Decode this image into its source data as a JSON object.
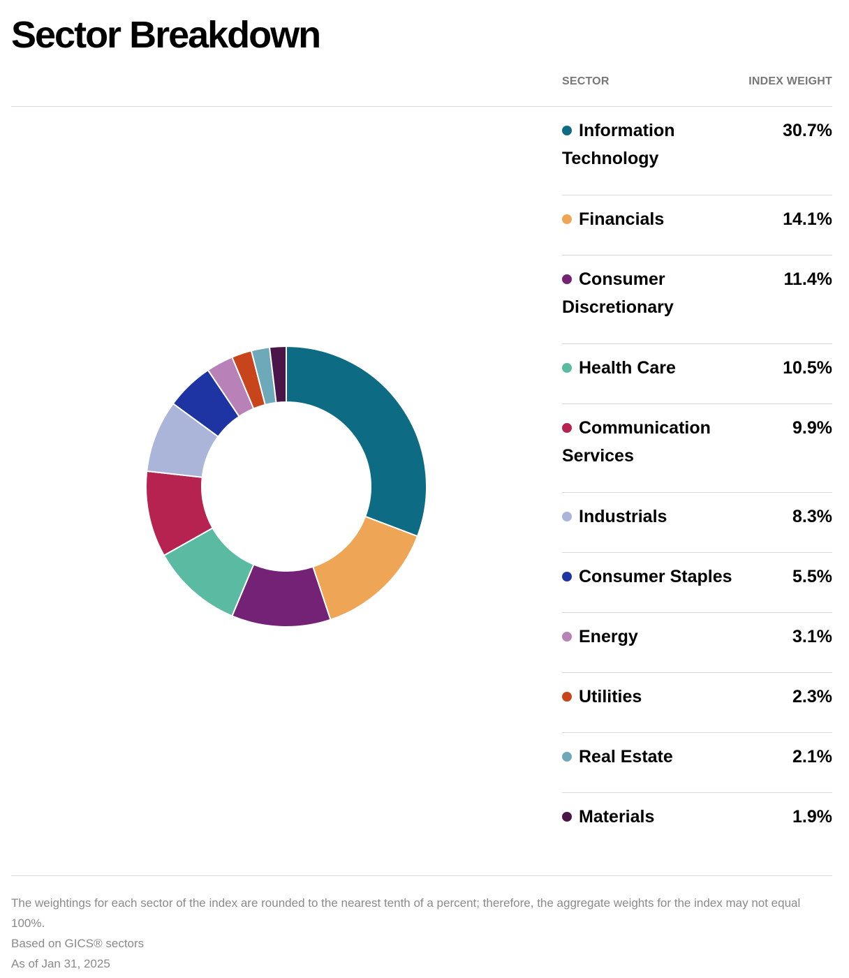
{
  "page": {
    "title": "Sector Breakdown",
    "columns": {
      "sector": "SECTOR",
      "weight": "INDEX WEIGHT"
    },
    "notes": {
      "rounding": "The weightings for each sector of the index are rounded to the nearest tenth of a percent; therefore, the aggregate weights for the index may not equal 100%.",
      "basis": "Based on GICS® sectors",
      "as_of": "As of Jan 31, 2025"
    }
  },
  "chart_data": {
    "type": "pie",
    "donut": true,
    "title": "Sector Breakdown",
    "categories": [
      "Information Technology",
      "Financials",
      "Consumer Discretionary",
      "Health Care",
      "Communication Services",
      "Industrials",
      "Consumer Staples",
      "Energy",
      "Utilities",
      "Real Estate",
      "Materials"
    ],
    "values": [
      30.7,
      14.1,
      11.4,
      10.5,
      9.9,
      8.3,
      5.5,
      3.1,
      2.3,
      2.1,
      1.9
    ],
    "labels": [
      "30.7%",
      "14.1%",
      "11.4%",
      "10.5%",
      "9.9%",
      "8.3%",
      "5.5%",
      "3.1%",
      "2.3%",
      "2.1%",
      "1.9%"
    ],
    "colors": [
      "#0e6b84",
      "#efa556",
      "#742275",
      "#5abba2",
      "#b62350",
      "#abb5da",
      "#1f34a3",
      "#b881b8",
      "#c8441a",
      "#6ea9ba",
      "#4a1549"
    ],
    "legend_placement": "right"
  }
}
